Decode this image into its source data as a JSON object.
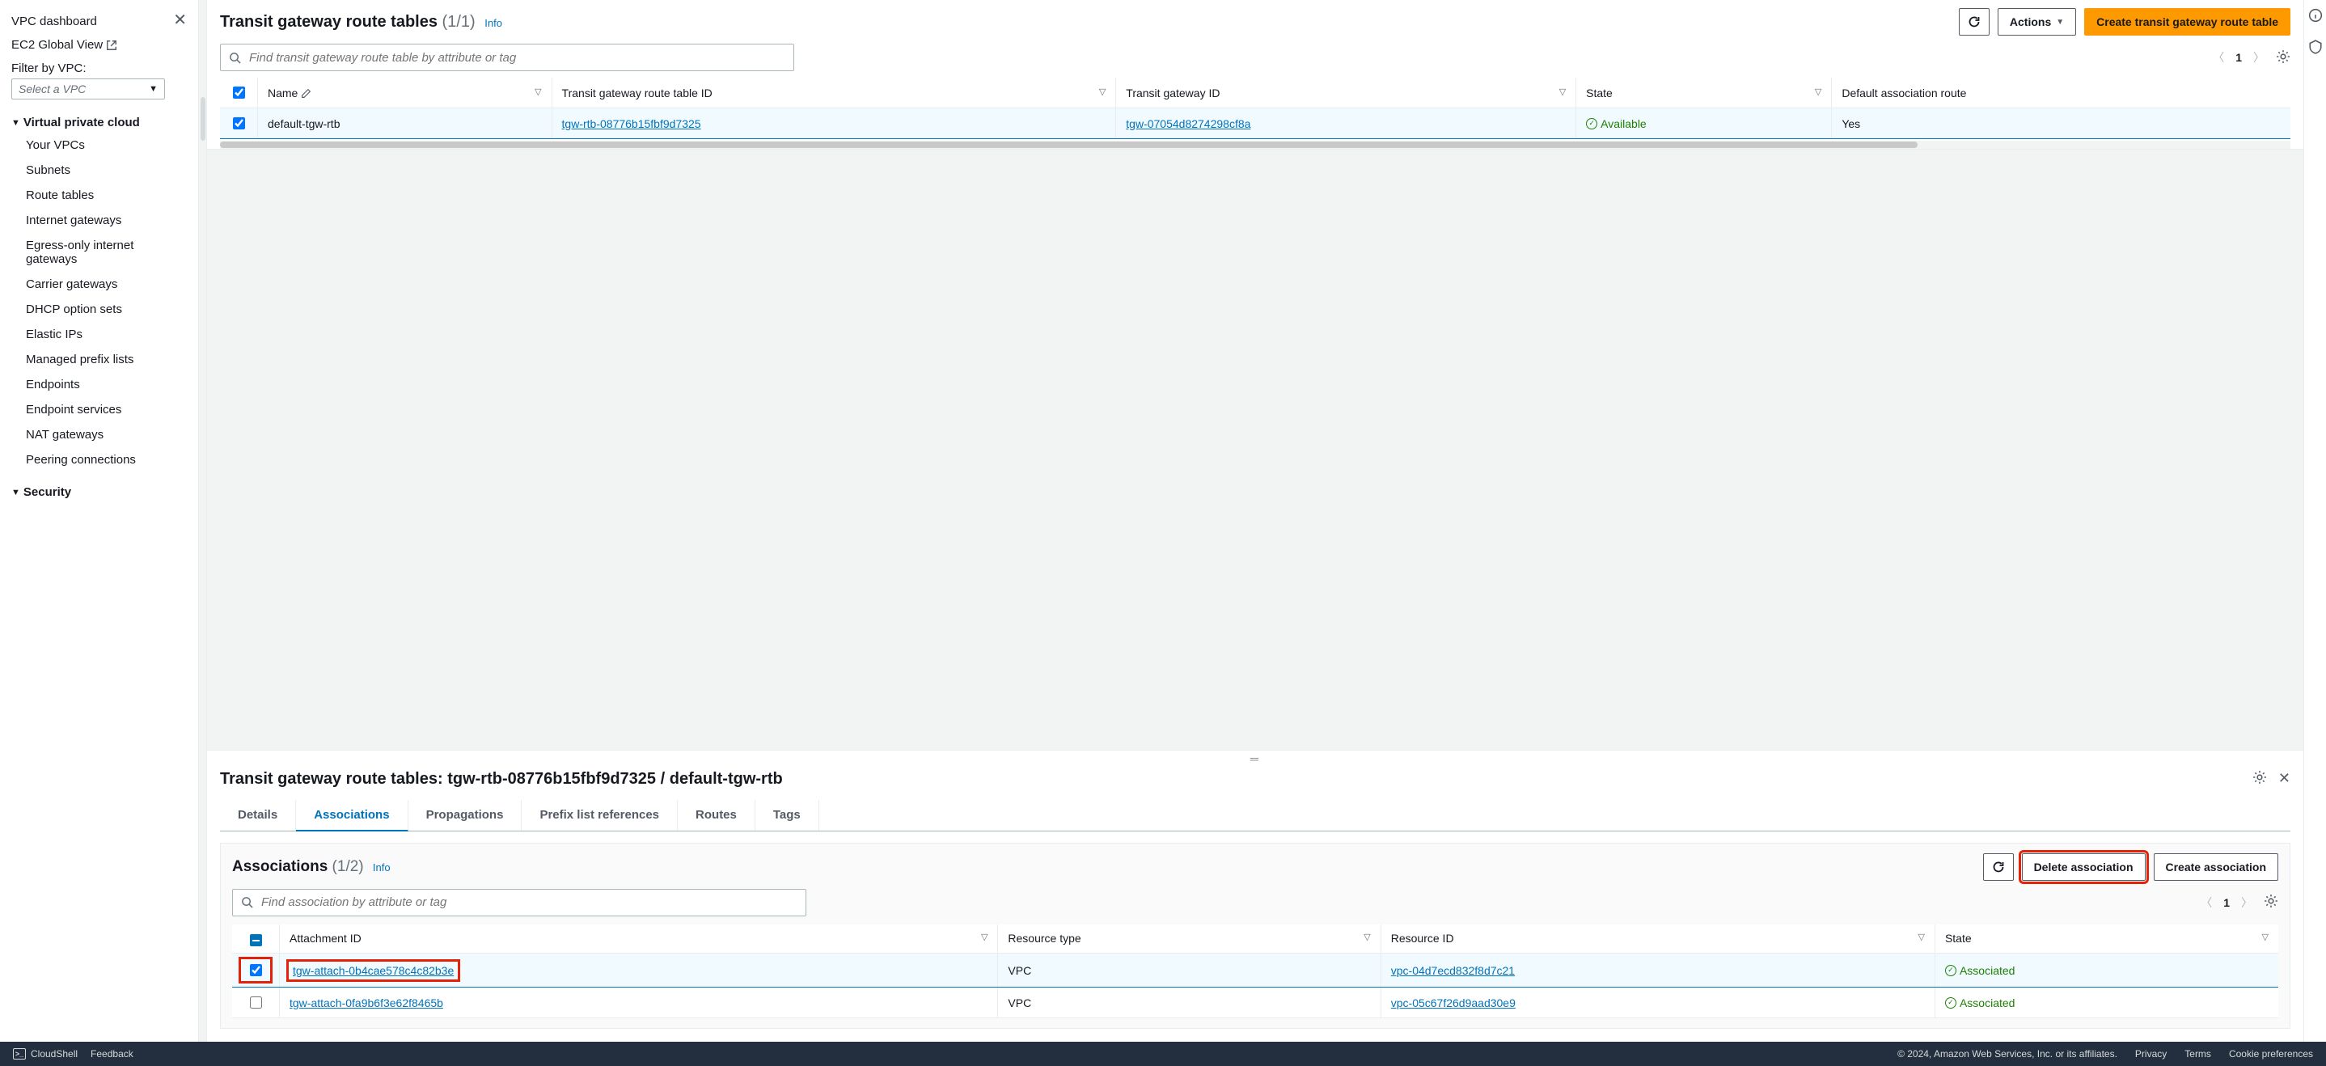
{
  "sidebar": {
    "dashboard": "VPC dashboard",
    "ec2_global_view": "EC2 Global View",
    "filter_label": "Filter by VPC:",
    "select_vpc_placeholder": "Select a VPC",
    "sections": {
      "vpc": {
        "title": "Virtual private cloud",
        "items": [
          "Your VPCs",
          "Subnets",
          "Route tables",
          "Internet gateways",
          "Egress-only internet gateways",
          "Carrier gateways",
          "DHCP option sets",
          "Elastic IPs",
          "Managed prefix lists",
          "Endpoints",
          "Endpoint services",
          "NAT gateways",
          "Peering connections"
        ]
      },
      "security": {
        "title": "Security"
      }
    }
  },
  "top": {
    "title": "Transit gateway route tables",
    "count": "(1/1)",
    "info": "Info",
    "refresh_label": "Refresh",
    "actions_label": "Actions",
    "create_label": "Create transit gateway route table",
    "search_placeholder": "Find transit gateway route table by attribute or tag",
    "page": "1",
    "columns": {
      "name": "Name",
      "route_table_id": "Transit gateway route table ID",
      "tgw_id": "Transit gateway ID",
      "state": "State",
      "default_assoc": "Default association route"
    },
    "row": {
      "name": "default-tgw-rtb",
      "rtb_id": "tgw-rtb-08776b15fbf9d7325",
      "tgw_id": "tgw-07054d8274298cf8a",
      "state": "Available",
      "default_assoc": "Yes"
    },
    "hscroll_thumb_width_pct": 82
  },
  "bottom": {
    "title": "Transit gateway route tables: tgw-rtb-08776b15fbf9d7325 / default-tgw-rtb",
    "tabs": [
      "Details",
      "Associations",
      "Propagations",
      "Prefix list references",
      "Routes",
      "Tags"
    ],
    "active_tab_index": 1,
    "assoc": {
      "title": "Associations",
      "count": "(1/2)",
      "info": "Info",
      "delete_btn": "Delete association",
      "create_btn": "Create association",
      "search_placeholder": "Find association by attribute or tag",
      "page": "1",
      "columns": {
        "attachment_id": "Attachment ID",
        "resource_type": "Resource type",
        "resource_id": "Resource ID",
        "state": "State"
      },
      "rows": [
        {
          "checked": true,
          "attachment_id": "tgw-attach-0b4cae578c4c82b3e",
          "resource_type": "VPC",
          "resource_id": "vpc-04d7ecd832f8d7c21",
          "state": "Associated"
        },
        {
          "checked": false,
          "attachment_id": "tgw-attach-0fa9b6f3e62f8465b",
          "resource_type": "VPC",
          "resource_id": "vpc-05c67f26d9aad30e9",
          "state": "Associated"
        }
      ]
    }
  },
  "footer": {
    "cloudshell": "CloudShell",
    "feedback": "Feedback",
    "copyright": "© 2024, Amazon Web Services, Inc. or its affiliates.",
    "links": [
      "Privacy",
      "Terms",
      "Cookie preferences"
    ]
  }
}
